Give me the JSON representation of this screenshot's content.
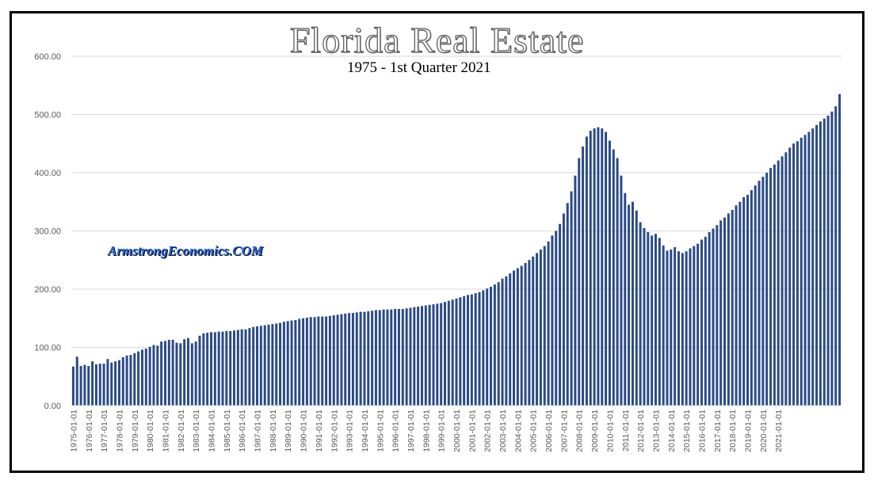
{
  "chart_data": {
    "type": "bar",
    "title": "Florida Real Estate",
    "subtitle": "1975 - 1st Quarter 2021",
    "watermark": "ArmstrongEconomics.COM",
    "ylim": [
      0,
      600
    ],
    "yticks": [
      "0.00",
      "100.00",
      "200.00",
      "300.00",
      "400.00",
      "500.00",
      "600.00"
    ],
    "xlabels": [
      "1975-01-01",
      "1976-01-01",
      "1977-01-01",
      "1978-01-01",
      "1979-01-01",
      "1980-01-01",
      "1981-01-01",
      "1982-01-01",
      "1983-01-01",
      "1984-01-01",
      "1985-01-01",
      "1986-01-01",
      "1987-01-01",
      "1988-01-01",
      "1989-01-01",
      "1990-01-01",
      "1991-01-01",
      "1992-01-01",
      "1993-01-01",
      "1994-01-01",
      "1995-01-01",
      "1996-01-01",
      "1997-01-01",
      "1998-01-01",
      "1999-01-01",
      "2000-01-01",
      "2001-01-01",
      "2002-01-01",
      "2003-01-01",
      "2004-01-01",
      "2005-01-01",
      "2006-01-01",
      "2007-01-01",
      "2008-01-01",
      "2009-01-01",
      "2010-01-01",
      "2011-01-01",
      "2012-01-01",
      "2013-01-01",
      "2014-01-01",
      "2015-01-01",
      "2016-01-01",
      "2017-01-01",
      "2018-01-01",
      "2019-01-01",
      "2020-01-01",
      "2021-01-01"
    ],
    "bar_color": "#2b4a86",
    "values": [
      67,
      84,
      68,
      70,
      68,
      76,
      71,
      72,
      72,
      80,
      74,
      76,
      78,
      83,
      86,
      87,
      90,
      93,
      96,
      98,
      101,
      104,
      103,
      110,
      111,
      113,
      113,
      108,
      107,
      114,
      116,
      107,
      110,
      120,
      124,
      125,
      126,
      126,
      127,
      127,
      128,
      128,
      129,
      130,
      131,
      131,
      133,
      135,
      136,
      137,
      138,
      139,
      140,
      141,
      142,
      144,
      145,
      146,
      147,
      149,
      150,
      151,
      152,
      152,
      153,
      153,
      153,
      154,
      155,
      156,
      157,
      158,
      159,
      159,
      160,
      161,
      161,
      162,
      163,
      164,
      164,
      165,
      165,
      165,
      166,
      166,
      166,
      167,
      168,
      169,
      170,
      171,
      172,
      173,
      174,
      175,
      176,
      178,
      180,
      182,
      184,
      186,
      188,
      190,
      191,
      193,
      195,
      198,
      201,
      204,
      208,
      212,
      218,
      222,
      227,
      232,
      236,
      240,
      245,
      250,
      256,
      262,
      268,
      274,
      282,
      292,
      300,
      312,
      330,
      348,
      368,
      395,
      425,
      445,
      462,
      472,
      476,
      478,
      476,
      470,
      455,
      440,
      425,
      395,
      365,
      345,
      350,
      335,
      315,
      305,
      298,
      292,
      295,
      288,
      275,
      266,
      268,
      272,
      265,
      262,
      265,
      270,
      274,
      278,
      285,
      290,
      298,
      304,
      310,
      318,
      323,
      330,
      336,
      344,
      350,
      358,
      362,
      370,
      378,
      386,
      393,
      400,
      408,
      414,
      421,
      428,
      435,
      443,
      450,
      454,
      460,
      465,
      470,
      476,
      482,
      488,
      493,
      498,
      505,
      514,
      535
    ]
  }
}
